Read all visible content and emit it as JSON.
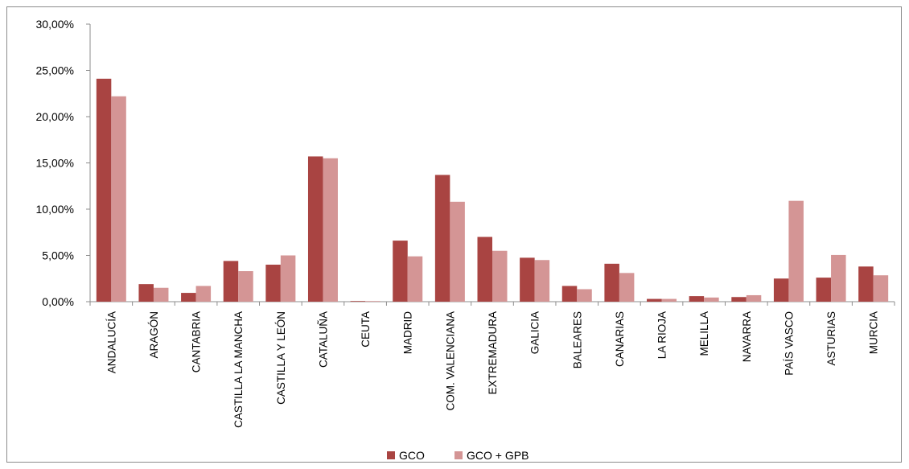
{
  "chart_data": {
    "type": "bar",
    "title": "",
    "xlabel": "",
    "ylabel": "",
    "ylim": [
      0,
      30
    ],
    "y_ticks": [
      "0,00%",
      "5,00%",
      "10,00%",
      "15,00%",
      "20,00%",
      "25,00%",
      "30,00%"
    ],
    "grid": false,
    "legend_position": "bottom",
    "categories": [
      "ANDALUCÍA",
      "ARAGÓN",
      "CANTABRIA",
      "CASTILLA LA MANCHA",
      "CASTILLA Y LEÓN",
      "CATALUÑA",
      "CEUTA",
      "MADRID",
      "COM. VALENCIANA",
      "EXTREMADURA",
      "GALICIA",
      "BALEARES",
      "CANARIAS",
      "LA RIOJA",
      "MELILLA",
      "NAVARRA",
      "PAÍS VASCO",
      "ASTURIAS",
      "MURCIA"
    ],
    "series": [
      {
        "name": "GCO",
        "color": "#a94442",
        "values": [
          24.1,
          1.9,
          0.95,
          4.4,
          4.0,
          15.7,
          0.05,
          6.6,
          13.7,
          7.0,
          4.75,
          1.7,
          4.1,
          0.3,
          0.6,
          0.5,
          2.5,
          2.6,
          3.8
        ]
      },
      {
        "name": "GCO + GPB",
        "color": "#d49595",
        "values": [
          22.2,
          1.5,
          1.7,
          3.3,
          5.0,
          15.5,
          0.02,
          4.9,
          10.8,
          5.5,
          4.5,
          1.35,
          3.1,
          0.3,
          0.45,
          0.7,
          10.9,
          5.05,
          2.85
        ]
      }
    ]
  }
}
